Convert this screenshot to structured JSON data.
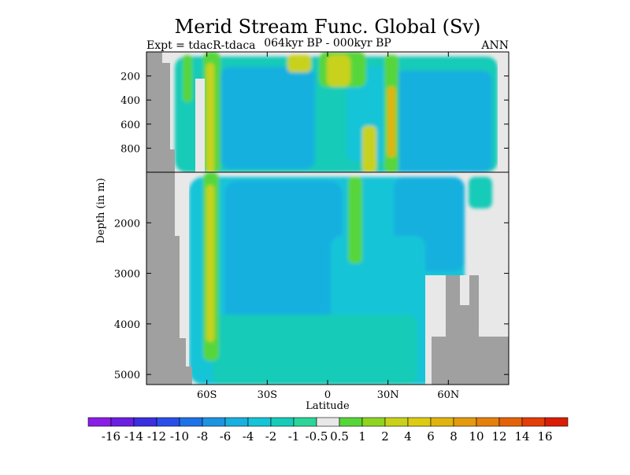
{
  "chart_data": {
    "type": "heatmap",
    "title": "Merid Stream Func. Global (Sv)",
    "subtitle_left": "Expt = tdacR-tdaca",
    "subtitle_center": "064kyr BP - 000kyr BP",
    "subtitle_right": "ANN",
    "xlabel": "Latitude",
    "ylabel": "Depth (in m)",
    "x_range": [
      -90,
      90
    ],
    "x_ticks": [
      {
        "value": -60,
        "label": "60S"
      },
      {
        "value": -30,
        "label": "30S"
      },
      {
        "value": 0,
        "label": "0"
      },
      {
        "value": 30,
        "label": "30N"
      },
      {
        "value": 60,
        "label": "60N"
      }
    ],
    "upper_panel": {
      "depth_range": [
        0,
        1000
      ],
      "y_ticks": [
        {
          "value": 200,
          "label": "200"
        },
        {
          "value": 400,
          "label": "400"
        },
        {
          "value": 600,
          "label": "600"
        },
        {
          "value": 800,
          "label": "800"
        }
      ]
    },
    "lower_panel": {
      "depth_range": [
        1000,
        5200
      ],
      "y_ticks": [
        {
          "value": 2000,
          "label": "2000"
        },
        {
          "value": 3000,
          "label": "3000"
        },
        {
          "value": 4000,
          "label": "4000"
        },
        {
          "value": 5000,
          "label": "5000"
        }
      ]
    },
    "colorbar": {
      "labels": [
        "-16",
        "-14",
        "-12",
        "-10",
        "-8",
        "-6",
        "-4",
        "-2",
        "-1",
        "-0.5",
        "0.5",
        "1",
        "2",
        "4",
        "6",
        "8",
        "10",
        "12",
        "14",
        "16"
      ],
      "colors": [
        "#8a1ee6",
        "#6a20e0",
        "#3b2fe0",
        "#2a4fe8",
        "#1f72e6",
        "#1e93e0",
        "#19b0df",
        "#16c4d8",
        "#17cbb8",
        "#2bd59a",
        "#e8e8e8",
        "#57d63a",
        "#8fd41f",
        "#c8d21a",
        "#dccb12",
        "#e0b40f",
        "#e39b0d",
        "#e5800b",
        "#e46309",
        "#e23e07",
        "#d91e05"
      ]
    },
    "colors": {
      "land": "#a0a0a0",
      "no_data": "#e8e8e8",
      "negative_main": "#16c4d8",
      "negative_strong": "#19b0df",
      "negative_weak": "#17cbb8",
      "positive_weak": "#57d63a",
      "positive_mid": "#c8d21a",
      "positive_strong": "#e0b40f"
    }
  }
}
